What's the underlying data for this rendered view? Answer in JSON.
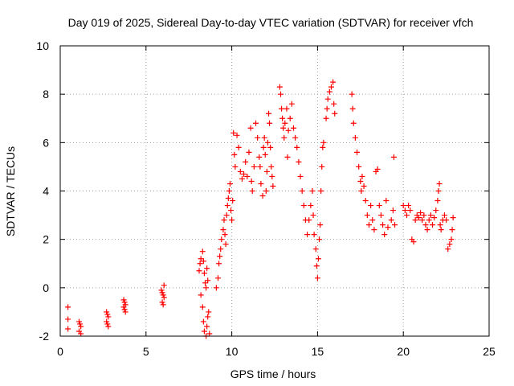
{
  "chart_data": {
    "type": "scatter",
    "title": "Day 019 of 2025, Sidereal Day-to-day VTEC variation (SDTVAR) for receiver vfch",
    "xlabel": "GPS time / hours",
    "ylabel": "SDTVAR / TECUs",
    "xlim": [
      0,
      25
    ],
    "ylim": [
      -2,
      10
    ],
    "xticks": [
      0,
      5,
      10,
      15,
      20,
      25
    ],
    "yticks": [
      -2,
      0,
      2,
      4,
      6,
      8,
      10
    ],
    "grid": true,
    "marker": "+",
    "color": "#ff0000",
    "series": [
      {
        "name": "SDTVAR",
        "points": [
          [
            0.45,
            -0.8
          ],
          [
            0.45,
            -1.3
          ],
          [
            0.45,
            -1.7
          ],
          [
            1.1,
            -1.4
          ],
          [
            1.15,
            -1.5
          ],
          [
            1.2,
            -1.6
          ],
          [
            1.1,
            -1.8
          ],
          [
            1.2,
            -1.9
          ],
          [
            2.7,
            -1.0
          ],
          [
            2.75,
            -1.1
          ],
          [
            2.8,
            -1.2
          ],
          [
            2.7,
            -1.4
          ],
          [
            2.75,
            -1.5
          ],
          [
            2.8,
            -1.6
          ],
          [
            3.7,
            -0.5
          ],
          [
            3.75,
            -0.6
          ],
          [
            3.8,
            -0.7
          ],
          [
            3.7,
            -0.8
          ],
          [
            3.75,
            -0.9
          ],
          [
            3.8,
            -1.0
          ],
          [
            5.9,
            -0.1
          ],
          [
            5.95,
            -0.2
          ],
          [
            6.0,
            -0.3
          ],
          [
            6.05,
            -0.4
          ],
          [
            5.95,
            -0.6
          ],
          [
            6.0,
            -0.7
          ],
          [
            6.05,
            0.1
          ],
          [
            8.2,
            -0.3
          ],
          [
            8.3,
            -0.8
          ],
          [
            8.35,
            -1.4
          ],
          [
            8.4,
            -1.8
          ],
          [
            8.5,
            -2.0
          ],
          [
            8.55,
            -1.6
          ],
          [
            8.6,
            -1.2
          ],
          [
            8.65,
            -1.0
          ],
          [
            8.7,
            -1.9
          ],
          [
            8.1,
            0.7
          ],
          [
            8.15,
            1.0
          ],
          [
            8.2,
            1.2
          ],
          [
            8.3,
            1.5
          ],
          [
            8.35,
            1.1
          ],
          [
            8.4,
            0.6
          ],
          [
            8.45,
            0.2
          ],
          [
            8.5,
            0.0
          ],
          [
            8.6,
            0.3
          ],
          [
            8.55,
            0.8
          ],
          [
            9.1,
            0.0
          ],
          [
            9.2,
            0.4
          ],
          [
            9.25,
            1.0
          ],
          [
            9.3,
            1.3
          ],
          [
            9.35,
            1.6
          ],
          [
            9.4,
            2.0
          ],
          [
            9.5,
            2.4
          ],
          [
            9.55,
            2.8
          ],
          [
            9.6,
            2.2
          ],
          [
            9.65,
            1.8
          ],
          [
            9.7,
            3.0
          ],
          [
            9.75,
            3.4
          ],
          [
            9.8,
            3.7
          ],
          [
            9.85,
            4.0
          ],
          [
            9.9,
            4.3
          ],
          [
            9.95,
            3.2
          ],
          [
            10.0,
            2.8
          ],
          [
            10.05,
            3.6
          ],
          [
            10.1,
            6.4
          ],
          [
            10.15,
            5.5
          ],
          [
            10.2,
            5.0
          ],
          [
            10.3,
            6.3
          ],
          [
            10.4,
            5.8
          ],
          [
            10.5,
            4.8
          ],
          [
            10.6,
            4.5
          ],
          [
            10.7,
            4.7
          ],
          [
            10.8,
            5.2
          ],
          [
            10.9,
            4.6
          ],
          [
            11.0,
            5.6
          ],
          [
            11.1,
            6.6
          ],
          [
            11.15,
            4.4
          ],
          [
            11.2,
            4.0
          ],
          [
            11.3,
            5.0
          ],
          [
            11.4,
            6.8
          ],
          [
            11.5,
            6.2
          ],
          [
            11.6,
            5.4
          ],
          [
            11.65,
            5.0
          ],
          [
            11.7,
            4.3
          ],
          [
            11.8,
            3.8
          ],
          [
            11.85,
            5.8
          ],
          [
            11.9,
            6.2
          ],
          [
            11.95,
            5.5
          ],
          [
            12.0,
            4.0
          ],
          [
            12.05,
            4.8
          ],
          [
            12.1,
            6.0
          ],
          [
            12.15,
            7.2
          ],
          [
            12.2,
            6.8
          ],
          [
            12.25,
            5.8
          ],
          [
            12.3,
            5.0
          ],
          [
            12.35,
            4.6
          ],
          [
            12.4,
            4.2
          ],
          [
            12.8,
            8.3
          ],
          [
            12.85,
            8.0
          ],
          [
            12.9,
            7.4
          ],
          [
            12.95,
            7.0
          ],
          [
            13.0,
            6.6
          ],
          [
            13.05,
            6.2
          ],
          [
            13.1,
            6.8
          ],
          [
            13.2,
            7.4
          ],
          [
            13.25,
            5.4
          ],
          [
            13.3,
            6.5
          ],
          [
            13.4,
            7.0
          ],
          [
            13.5,
            7.6
          ],
          [
            13.6,
            6.6
          ],
          [
            13.7,
            6.2
          ],
          [
            13.8,
            5.8
          ],
          [
            13.9,
            5.2
          ],
          [
            14.0,
            4.6
          ],
          [
            14.1,
            4.0
          ],
          [
            14.2,
            3.4
          ],
          [
            14.3,
            2.8
          ],
          [
            14.4,
            2.2
          ],
          [
            14.5,
            2.8
          ],
          [
            14.6,
            3.4
          ],
          [
            14.7,
            4.0
          ],
          [
            14.75,
            3.0
          ],
          [
            14.8,
            2.2
          ],
          [
            14.9,
            1.6
          ],
          [
            14.95,
            0.9
          ],
          [
            15.0,
            0.4
          ],
          [
            15.05,
            1.2
          ],
          [
            15.1,
            2.0
          ],
          [
            15.15,
            2.6
          ],
          [
            15.2,
            4.0
          ],
          [
            15.25,
            5.0
          ],
          [
            15.3,
            5.8
          ],
          [
            15.35,
            6.0
          ],
          [
            15.5,
            7.0
          ],
          [
            15.55,
            7.4
          ],
          [
            15.6,
            7.8
          ],
          [
            15.7,
            8.1
          ],
          [
            15.8,
            8.3
          ],
          [
            15.9,
            8.5
          ],
          [
            15.95,
            7.6
          ],
          [
            16.0,
            7.2
          ],
          [
            17.0,
            8.0
          ],
          [
            17.05,
            7.4
          ],
          [
            17.1,
            6.8
          ],
          [
            17.2,
            6.2
          ],
          [
            17.3,
            5.6
          ],
          [
            17.4,
            5.0
          ],
          [
            17.5,
            4.4
          ],
          [
            17.55,
            4.0
          ],
          [
            17.6,
            4.6
          ],
          [
            17.7,
            4.2
          ],
          [
            17.8,
            3.6
          ],
          [
            17.9,
            3.0
          ],
          [
            18.0,
            2.6
          ],
          [
            18.1,
            3.4
          ],
          [
            18.2,
            2.8
          ],
          [
            18.3,
            2.4
          ],
          [
            18.4,
            4.8
          ],
          [
            18.5,
            4.9
          ],
          [
            18.6,
            3.4
          ],
          [
            18.7,
            3.0
          ],
          [
            18.8,
            2.6
          ],
          [
            18.9,
            2.2
          ],
          [
            19.0,
            3.6
          ],
          [
            19.1,
            2.5
          ],
          [
            19.3,
            2.8
          ],
          [
            19.4,
            3.2
          ],
          [
            19.45,
            5.4
          ],
          [
            19.5,
            2.6
          ],
          [
            20.0,
            3.4
          ],
          [
            20.1,
            3.2
          ],
          [
            20.2,
            3.0
          ],
          [
            20.3,
            3.4
          ],
          [
            20.4,
            3.2
          ],
          [
            20.5,
            2.0
          ],
          [
            20.6,
            1.9
          ],
          [
            20.7,
            2.8
          ],
          [
            20.8,
            3.0
          ],
          [
            20.9,
            2.9
          ],
          [
            21.0,
            3.1
          ],
          [
            21.1,
            2.8
          ],
          [
            21.2,
            3.0
          ],
          [
            21.3,
            2.6
          ],
          [
            21.4,
            2.4
          ],
          [
            21.5,
            2.8
          ],
          [
            21.6,
            3.0
          ],
          [
            21.7,
            2.6
          ],
          [
            21.8,
            2.9
          ],
          [
            21.9,
            3.2
          ],
          [
            22.0,
            3.6
          ],
          [
            22.05,
            4.0
          ],
          [
            22.1,
            4.3
          ],
          [
            22.15,
            2.6
          ],
          [
            22.2,
            2.4
          ],
          [
            22.3,
            2.8
          ],
          [
            22.4,
            3.0
          ],
          [
            22.5,
            2.8
          ],
          [
            22.6,
            1.6
          ],
          [
            22.7,
            1.8
          ],
          [
            22.8,
            2.0
          ],
          [
            22.85,
            2.4
          ],
          [
            22.9,
            2.9
          ]
        ]
      }
    ]
  }
}
